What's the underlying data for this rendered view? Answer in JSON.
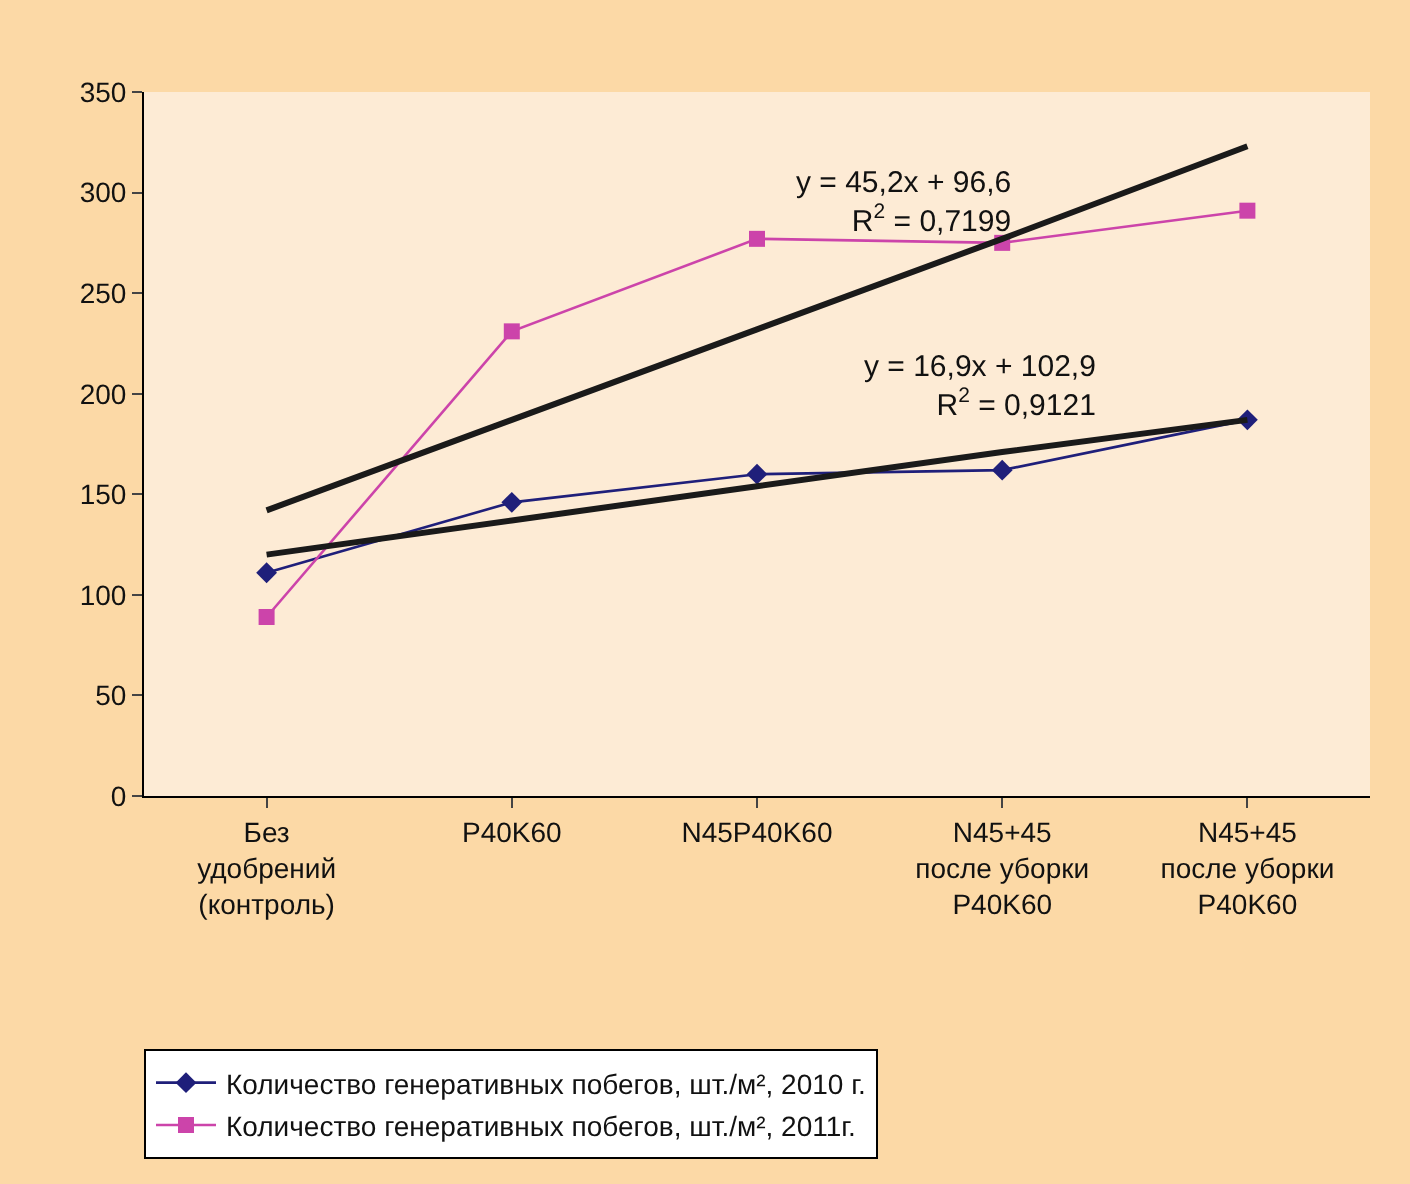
{
  "chart_data": {
    "type": "line",
    "categories": [
      "Без\nудобрений\n(контроль)",
      "P40K60",
      "N45P40K60",
      "N45+45\nпосле уборки\nP40K60",
      "N45+45\nпосле уборки\nP40K60"
    ],
    "series": [
      {
        "name": "Количество генеративных побегов, шт./м², 2010 г.",
        "color": "#1f1f7a",
        "values": [
          111,
          146,
          160,
          162,
          187
        ],
        "marker": "diamond"
      },
      {
        "name": "Количество генеративных побегов, шт./м², 2011г.",
        "color": "#cc44aa",
        "values": [
          89,
          231,
          277,
          275,
          291
        ],
        "marker": "square"
      },
      {
        "type": "line",
        "color": "#1a1a1a",
        "values": [
          120,
          137,
          154,
          171,
          187
        ],
        "marker": "none"
      },
      {
        "type": "line",
        "color": "#1a1a1a",
        "values": [
          142,
          187,
          232,
          277,
          323
        ],
        "marker": "none"
      }
    ],
    "annotations": [
      "y = 45,2x + 96,6\nR$^{2}$ = 0,7199",
      "y = 16,9x + 102,9\nR$^{2}$ = 0,9121"
    ],
    "ylim": [
      0,
      350
    ],
    "yticks": [
      0,
      50,
      100,
      150,
      200,
      250,
      300,
      350
    ],
    "grid": false,
    "legend": "bottom",
    "line_style": "solid"
  }
}
